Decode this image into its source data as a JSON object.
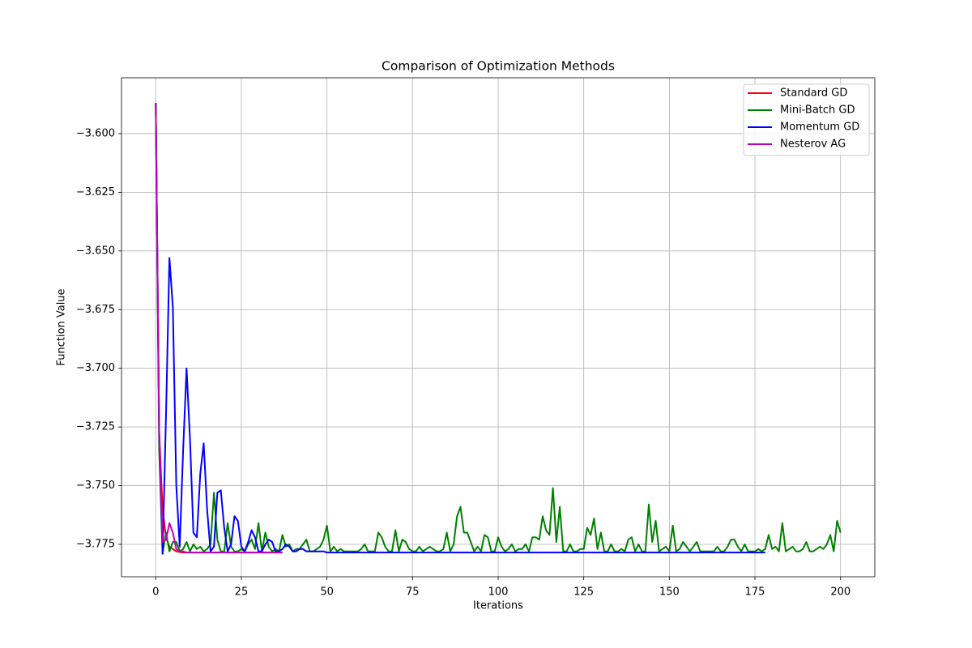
{
  "chart_data": {
    "type": "line",
    "title": "Comparison of Optimization Methods",
    "x_label": "Iterations",
    "y_label": "Function Value",
    "xlim": [
      -10,
      210
    ],
    "ylim": [
      -3.7888,
      -3.5762
    ],
    "xticks": [
      0,
      25,
      50,
      75,
      100,
      125,
      150,
      175,
      200
    ],
    "yticks": [
      {
        "value": -3.6,
        "label": "−3.600"
      },
      {
        "value": -3.625,
        "label": "−3.625"
      },
      {
        "value": -3.65,
        "label": "−3.650"
      },
      {
        "value": -3.675,
        "label": "−3.675"
      },
      {
        "value": -3.7,
        "label": "−3.700"
      },
      {
        "value": -3.725,
        "label": "−3.725"
      },
      {
        "value": -3.75,
        "label": "−3.750"
      },
      {
        "value": -3.775,
        "label": "−3.775"
      }
    ],
    "grid": true,
    "legend_position": "upper-right",
    "series": [
      {
        "name": "Standard GD",
        "color": "#ff0000",
        "x": [
          0,
          1,
          2,
          3,
          4,
          5,
          6,
          7,
          8,
          9,
          10,
          11,
          12,
          13,
          14,
          15,
          16,
          17,
          18,
          19,
          20,
          21,
          22,
          23,
          24,
          25,
          26,
          27,
          28,
          29,
          30,
          31,
          32,
          33,
          34,
          35,
          36,
          37
        ],
        "values": [
          -3.587,
          -3.727,
          -3.76,
          -3.772,
          -3.776,
          -3.777,
          -3.778,
          -3.7783,
          -3.7785,
          -3.7785,
          -3.7785,
          -3.7785,
          -3.7785,
          -3.7785,
          -3.7785,
          -3.7785,
          -3.7785,
          -3.7785,
          -3.7785,
          -3.7785,
          -3.7785,
          -3.7785,
          -3.7785,
          -3.7785,
          -3.7785,
          -3.7785,
          -3.7785,
          -3.7785,
          -3.7785,
          -3.7785,
          -3.7785,
          -3.7785,
          -3.7785,
          -3.7785,
          -3.7785,
          -3.7785,
          -3.7785,
          -3.7785
        ]
      },
      {
        "name": "Mini-Batch GD",
        "color": "#008000",
        "x": [
          0,
          1,
          2,
          3,
          4,
          5,
          6,
          7,
          8,
          9,
          10,
          11,
          12,
          13,
          14,
          15,
          16,
          17,
          18,
          19,
          20,
          21,
          22,
          23,
          24,
          25,
          26,
          27,
          28,
          29,
          30,
          31,
          32,
          33,
          34,
          35,
          36,
          37,
          38,
          39,
          40,
          41,
          42,
          43,
          44,
          45,
          46,
          47,
          48,
          49,
          50,
          51,
          52,
          53,
          54,
          55,
          56,
          57,
          58,
          59,
          60,
          61,
          62,
          63,
          64,
          65,
          66,
          67,
          68,
          69,
          70,
          71,
          72,
          73,
          74,
          75,
          76,
          77,
          78,
          79,
          80,
          81,
          82,
          83,
          84,
          85,
          86,
          87,
          88,
          89,
          90,
          91,
          92,
          93,
          94,
          95,
          96,
          97,
          98,
          99,
          100,
          101,
          102,
          103,
          104,
          105,
          106,
          107,
          108,
          109,
          110,
          111,
          112,
          113,
          114,
          115,
          116,
          117,
          118,
          119,
          120,
          121,
          122,
          123,
          124,
          125,
          126,
          127,
          128,
          129,
          130,
          131,
          132,
          133,
          134,
          135,
          136,
          137,
          138,
          139,
          140,
          141,
          142,
          143,
          144,
          145,
          146,
          147,
          148,
          149,
          150,
          151,
          152,
          153,
          154,
          155,
          156,
          157,
          158,
          159,
          160,
          161,
          162,
          163,
          164,
          165,
          166,
          167,
          168,
          169,
          170,
          171,
          172,
          173,
          174,
          175,
          176,
          177,
          178,
          179,
          180,
          181,
          182,
          183,
          184,
          185,
          186,
          187,
          188,
          189,
          190,
          191,
          192,
          193,
          194,
          195,
          196,
          197,
          198,
          199,
          200
        ],
        "values": [
          -3.587,
          -3.735,
          -3.779,
          -3.77,
          -3.778,
          -3.774,
          -3.774,
          -3.778,
          -3.777,
          -3.774,
          -3.778,
          -3.775,
          -3.777,
          -3.776,
          -3.778,
          -3.777,
          -3.775,
          -3.753,
          -3.773,
          -3.778,
          -3.778,
          -3.766,
          -3.776,
          -3.778,
          -3.778,
          -3.777,
          -3.778,
          -3.775,
          -3.773,
          -3.777,
          -3.766,
          -3.778,
          -3.77,
          -3.776,
          -3.778,
          -3.777,
          -3.778,
          -3.771,
          -3.776,
          -3.775,
          -3.778,
          -3.777,
          -3.777,
          -3.775,
          -3.773,
          -3.778,
          -3.778,
          -3.777,
          -3.776,
          -3.773,
          -3.767,
          -3.778,
          -3.776,
          -3.778,
          -3.777,
          -3.778,
          -3.778,
          -3.778,
          -3.778,
          -3.778,
          -3.777,
          -3.775,
          -3.778,
          -3.778,
          -3.778,
          -3.77,
          -3.772,
          -3.776,
          -3.778,
          -3.778,
          -3.769,
          -3.778,
          -3.773,
          -3.774,
          -3.777,
          -3.778,
          -3.778,
          -3.776,
          -3.778,
          -3.777,
          -3.776,
          -3.777,
          -3.778,
          -3.778,
          -3.777,
          -3.77,
          -3.778,
          -3.775,
          -3.763,
          -3.759,
          -3.77,
          -3.77,
          -3.774,
          -3.778,
          -3.776,
          -3.778,
          -3.771,
          -3.772,
          -3.778,
          -3.778,
          -3.772,
          -3.776,
          -3.778,
          -3.777,
          -3.775,
          -3.778,
          -3.777,
          -3.777,
          -3.775,
          -3.778,
          -3.772,
          -3.772,
          -3.773,
          -3.763,
          -3.769,
          -3.771,
          -3.751,
          -3.774,
          -3.759,
          -3.778,
          -3.778,
          -3.775,
          -3.778,
          -3.778,
          -3.777,
          -3.777,
          -3.768,
          -3.771,
          -3.764,
          -3.777,
          -3.77,
          -3.778,
          -3.778,
          -3.775,
          -3.778,
          -3.778,
          -3.777,
          -3.778,
          -3.773,
          -3.772,
          -3.778,
          -3.775,
          -3.778,
          -3.778,
          -3.758,
          -3.774,
          -3.765,
          -3.778,
          -3.777,
          -3.776,
          -3.778,
          -3.767,
          -3.778,
          -3.777,
          -3.774,
          -3.776,
          -3.778,
          -3.776,
          -3.774,
          -3.778,
          -3.778,
          -3.778,
          -3.778,
          -3.778,
          -3.776,
          -3.778,
          -3.778,
          -3.776,
          -3.773,
          -3.773,
          -3.776,
          -3.778,
          -3.775,
          -3.778,
          -3.778,
          -3.778,
          -3.777,
          -3.778,
          -3.777,
          -3.771,
          -3.777,
          -3.776,
          -3.778,
          -3.766,
          -3.778,
          -3.777,
          -3.776,
          -3.778,
          -3.778,
          -3.777,
          -3.774,
          -3.778,
          -3.778,
          -3.777,
          -3.776,
          -3.777,
          -3.775,
          -3.771,
          -3.778,
          -3.765,
          -3.77
        ]
      },
      {
        "name": "Momentum GD",
        "color": "#0000ff",
        "x": [
          0,
          1,
          2,
          3,
          4,
          5,
          6,
          7,
          8,
          9,
          10,
          11,
          12,
          13,
          14,
          15,
          16,
          17,
          18,
          19,
          20,
          21,
          22,
          23,
          24,
          25,
          26,
          27,
          28,
          29,
          30,
          31,
          32,
          33,
          34,
          35,
          36,
          37,
          38,
          39,
          40,
          41,
          42,
          43,
          44,
          45,
          46,
          47,
          48,
          49,
          50,
          51,
          52,
          53,
          54,
          55,
          56,
          57,
          58,
          59,
          60,
          61,
          62,
          63,
          64,
          65,
          66,
          67,
          68,
          69,
          70,
          71,
          72,
          73,
          74,
          75,
          76,
          77,
          78,
          79,
          80,
          81,
          82,
          83,
          84,
          85,
          86,
          87,
          88,
          89,
          90,
          91,
          92,
          93,
          94,
          95,
          96,
          97,
          98,
          99,
          100,
          101,
          102,
          103,
          104,
          105,
          106,
          107,
          108,
          109,
          110,
          111,
          112,
          113,
          114,
          115,
          116,
          117,
          118,
          119,
          120,
          121,
          122,
          123,
          124,
          125,
          126,
          127,
          128,
          129,
          130,
          131,
          132,
          133,
          134,
          135,
          136,
          137,
          138,
          139,
          140,
          141,
          142,
          143,
          144,
          145,
          146,
          147,
          148,
          149,
          150,
          151,
          152,
          153,
          154,
          155,
          156,
          157,
          158,
          159,
          160,
          161,
          162,
          163,
          164,
          165,
          166,
          167,
          168,
          169,
          170,
          171,
          172,
          173,
          174,
          175,
          176,
          177,
          178
        ],
        "values": [
          -3.587,
          -3.727,
          -3.779,
          -3.72,
          -3.653,
          -3.674,
          -3.75,
          -3.776,
          -3.735,
          -3.7,
          -3.73,
          -3.77,
          -3.772,
          -3.745,
          -3.732,
          -3.76,
          -3.778,
          -3.776,
          -3.753,
          -3.752,
          -3.768,
          -3.778,
          -3.775,
          -3.763,
          -3.765,
          -3.776,
          -3.778,
          -3.774,
          -3.769,
          -3.772,
          -3.778,
          -3.778,
          -3.775,
          -3.773,
          -3.774,
          -3.778,
          -3.778,
          -3.777,
          -3.775,
          -3.776,
          -3.778,
          -3.778,
          -3.777,
          -3.777,
          -3.778,
          -3.778,
          -3.778,
          -3.778,
          -3.778,
          -3.778,
          -3.7785,
          -3.7785,
          -3.7785,
          -3.7785,
          -3.7785,
          -3.7785,
          -3.7785,
          -3.7785,
          -3.7785,
          -3.7785,
          -3.7785,
          -3.7785,
          -3.7785,
          -3.7785,
          -3.7785,
          -3.7785,
          -3.7785,
          -3.7785,
          -3.7785,
          -3.7785,
          -3.7785,
          -3.7785,
          -3.7785,
          -3.7785,
          -3.7785,
          -3.7785,
          -3.7785,
          -3.7785,
          -3.7785,
          -3.7785,
          -3.7785,
          -3.7785,
          -3.7785,
          -3.7785,
          -3.7785,
          -3.7785,
          -3.7785,
          -3.7785,
          -3.7785,
          -3.7785,
          -3.7785,
          -3.7785,
          -3.7785,
          -3.7785,
          -3.7785,
          -3.7785,
          -3.7785,
          -3.7785,
          -3.7785,
          -3.7785,
          -3.7785,
          -3.7785,
          -3.7785,
          -3.7785,
          -3.7785,
          -3.7785,
          -3.7785,
          -3.7785,
          -3.7785,
          -3.7785,
          -3.7785,
          -3.7785,
          -3.7785,
          -3.7785,
          -3.7785,
          -3.7785,
          -3.7785,
          -3.7785,
          -3.7785,
          -3.7785,
          -3.7785,
          -3.7785,
          -3.7785,
          -3.7785,
          -3.7785,
          -3.7785,
          -3.7785,
          -3.7785,
          -3.7785,
          -3.7785,
          -3.7785,
          -3.7785,
          -3.7785,
          -3.7785,
          -3.7785,
          -3.7785,
          -3.7785,
          -3.7785,
          -3.7785,
          -3.7785,
          -3.7785,
          -3.7785,
          -3.7785,
          -3.7785,
          -3.7785,
          -3.7785,
          -3.7785,
          -3.7785,
          -3.7785,
          -3.7785,
          -3.7785,
          -3.7785,
          -3.7785,
          -3.7785,
          -3.7785,
          -3.7785,
          -3.7785,
          -3.7785,
          -3.7785,
          -3.7785,
          -3.7785,
          -3.7785,
          -3.7785,
          -3.7785,
          -3.7785,
          -3.7785,
          -3.7785,
          -3.7785,
          -3.7785,
          -3.7785,
          -3.7785,
          -3.7785,
          -3.7785,
          -3.7785,
          -3.7785,
          -3.7785,
          -3.7785,
          -3.7785,
          -3.7785
        ]
      },
      {
        "name": "Nesterov AG",
        "color": "#bf00bf",
        "x": [
          0,
          1,
          2,
          3,
          4,
          5,
          6,
          7,
          8,
          9,
          10,
          11,
          12,
          13,
          14,
          15,
          16,
          17,
          18,
          19,
          20,
          21,
          22,
          23,
          24,
          25,
          26,
          27,
          28,
          29,
          30,
          31,
          32,
          33,
          34,
          35,
          36,
          37
        ],
        "values": [
          -3.587,
          -3.727,
          -3.774,
          -3.773,
          -3.766,
          -3.77,
          -3.777,
          -3.778,
          -3.778,
          -3.7785,
          -3.7785,
          -3.7785,
          -3.7785,
          -3.7785,
          -3.7785,
          -3.7785,
          -3.7785,
          -3.7785,
          -3.7785,
          -3.7785,
          -3.7785,
          -3.7785,
          -3.7785,
          -3.7785,
          -3.7785,
          -3.7785,
          -3.7785,
          -3.7785,
          -3.7785,
          -3.7785,
          -3.7785,
          -3.7785,
          -3.7785,
          -3.7785,
          -3.7785,
          -3.7785,
          -3.7785,
          -3.7785
        ]
      }
    ]
  }
}
